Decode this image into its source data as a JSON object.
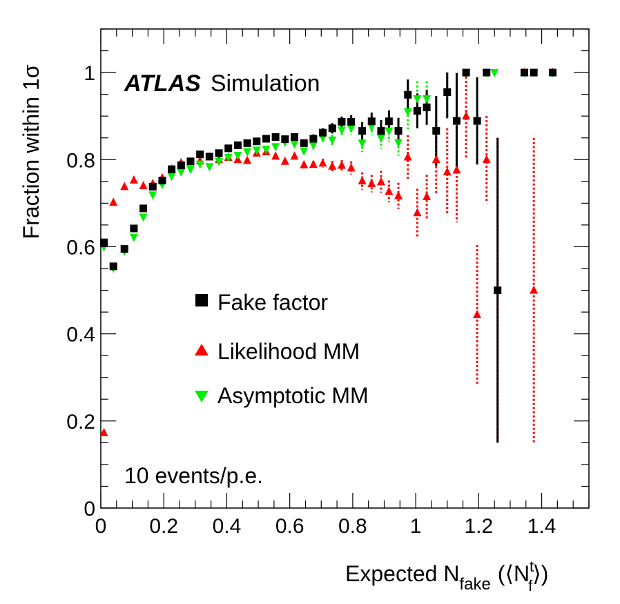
{
  "atlas_label": {
    "experiment": "ATLAS",
    "tag": "Simulation"
  },
  "annotation": "10 events/p.e.",
  "colors": {
    "fake_factor": "#000000",
    "likelihood": "#ff0000",
    "asymptotic": "#00ee00"
  },
  "chart_data": {
    "type": "scatter",
    "title": "",
    "xlabel": {
      "main": "Expected N",
      "sub": "fake",
      "paren_open": "(⟨N",
      "sup": "t",
      "sub2": "f",
      "paren_close": "⟩)"
    },
    "ylabel": "Fraction within 1σ",
    "xlim": [
      0,
      1.55
    ],
    "ylim": [
      0,
      1.1
    ],
    "x_ticks": [
      0,
      0.2,
      0.4,
      0.6,
      0.8,
      1,
      1.2,
      1.4
    ],
    "x_tick_labels": [
      "0",
      "0.2",
      "0.4",
      "0.6",
      "0.8",
      "1",
      "1.2",
      "1.4"
    ],
    "y_ticks": [
      0,
      0.2,
      0.4,
      0.6,
      0.8,
      1
    ],
    "y_tick_labels": [
      "0",
      "0.2",
      "0.4",
      "0.6",
      "0.8",
      "1"
    ],
    "legend": [
      {
        "name": "Fake factor",
        "marker": "square"
      },
      {
        "name": "Likelihood MM",
        "marker": "triangle-up"
      },
      {
        "name": "Asymptotic MM",
        "marker": "triangle-down"
      }
    ],
    "series": [
      {
        "name": "Fake factor",
        "marker": "square",
        "points": [
          [
            0.01,
            0.61,
            0.005
          ],
          [
            0.04,
            0.555,
            0.008
          ],
          [
            0.075,
            0.595,
            0.005
          ],
          [
            0.105,
            0.642,
            0.005
          ],
          [
            0.135,
            0.688,
            0.005
          ],
          [
            0.165,
            0.738,
            0.005
          ],
          [
            0.195,
            0.752,
            0.005
          ],
          [
            0.225,
            0.778,
            0.005
          ],
          [
            0.255,
            0.787,
            0.005
          ],
          [
            0.285,
            0.796,
            0.005
          ],
          [
            0.315,
            0.812,
            0.005
          ],
          [
            0.345,
            0.807,
            0.005
          ],
          [
            0.375,
            0.815,
            0.005
          ],
          [
            0.405,
            0.826,
            0.005
          ],
          [
            0.435,
            0.833,
            0.005
          ],
          [
            0.465,
            0.838,
            0.005
          ],
          [
            0.495,
            0.842,
            0.005
          ],
          [
            0.525,
            0.848,
            0.006
          ],
          [
            0.555,
            0.852,
            0.006
          ],
          [
            0.585,
            0.847,
            0.006
          ],
          [
            0.615,
            0.852,
            0.006
          ],
          [
            0.645,
            0.838,
            0.008
          ],
          [
            0.675,
            0.848,
            0.01
          ],
          [
            0.705,
            0.862,
            0.01
          ],
          [
            0.735,
            0.872,
            0.012
          ],
          [
            0.765,
            0.887,
            0.012
          ],
          [
            0.795,
            0.887,
            0.015
          ],
          [
            0.83,
            0.866,
            0.02
          ],
          [
            0.86,
            0.888,
            0.02
          ],
          [
            0.89,
            0.866,
            0.025
          ],
          [
            0.915,
            0.888,
            0.025
          ],
          [
            0.945,
            0.866,
            0.03
          ],
          [
            0.975,
            0.949,
            0.035
          ],
          [
            1.005,
            0.912,
            0.04
          ],
          [
            1.035,
            0.92,
            0.04
          ],
          [
            1.065,
            0.866,
            0.08
          ],
          [
            1.1,
            0.955,
            0.06
          ],
          [
            1.13,
            0.889,
            0.11
          ],
          [
            1.16,
            1.0,
            0.01
          ],
          [
            1.195,
            0.889,
            0.1
          ],
          [
            1.225,
            1.0,
            0.005
          ],
          [
            1.26,
            0.5,
            0.35
          ],
          [
            1.345,
            1.0,
            0.005
          ],
          [
            1.375,
            1.0,
            0.005
          ],
          [
            1.435,
            1.0,
            0.005
          ]
        ]
      },
      {
        "name": "Likelihood MM",
        "marker": "triangle-up",
        "points": [
          [
            0.01,
            0.173,
            0.0
          ],
          [
            0.04,
            0.702,
            0.0
          ],
          [
            0.075,
            0.738,
            0.0
          ],
          [
            0.105,
            0.753,
            0.0
          ],
          [
            0.135,
            0.74,
            0.0
          ],
          [
            0.165,
            0.745,
            0.0
          ],
          [
            0.195,
            0.758,
            0.0
          ],
          [
            0.225,
            0.778,
            0.0
          ],
          [
            0.255,
            0.793,
            0.0
          ],
          [
            0.285,
            0.795,
            0.0
          ],
          [
            0.315,
            0.797,
            0.0
          ],
          [
            0.345,
            0.806,
            0.0
          ],
          [
            0.375,
            0.8,
            0.0
          ],
          [
            0.405,
            0.805,
            0.0
          ],
          [
            0.435,
            0.8,
            0.0
          ],
          [
            0.465,
            0.798,
            0.0
          ],
          [
            0.495,
            0.815,
            0.0
          ],
          [
            0.525,
            0.818,
            0.0
          ],
          [
            0.555,
            0.808,
            0.0
          ],
          [
            0.585,
            0.796,
            0.006
          ],
          [
            0.615,
            0.808,
            0.006
          ],
          [
            0.645,
            0.788,
            0.008
          ],
          [
            0.675,
            0.789,
            0.008
          ],
          [
            0.705,
            0.792,
            0.01
          ],
          [
            0.735,
            0.785,
            0.012
          ],
          [
            0.765,
            0.787,
            0.012
          ],
          [
            0.795,
            0.781,
            0.015
          ],
          [
            0.83,
            0.751,
            0.02
          ],
          [
            0.86,
            0.745,
            0.02
          ],
          [
            0.89,
            0.749,
            0.025
          ],
          [
            0.915,
            0.727,
            0.025
          ],
          [
            0.945,
            0.717,
            0.03
          ],
          [
            0.975,
            0.806,
            0.05
          ],
          [
            1.005,
            0.678,
            0.055
          ],
          [
            1.035,
            0.715,
            0.05
          ],
          [
            1.065,
            0.8,
            0.08
          ],
          [
            1.1,
            0.772,
            0.1
          ],
          [
            1.13,
            0.776,
            0.12
          ],
          [
            1.16,
            0.9,
            0.1
          ],
          [
            1.195,
            0.444,
            0.16
          ],
          [
            1.225,
            0.8,
            0.1
          ],
          [
            1.26,
            0.5,
            0.35
          ],
          [
            1.345,
            1.0,
            0.005
          ],
          [
            1.375,
            0.5,
            0.35
          ],
          [
            1.435,
            1.0,
            0.005
          ]
        ]
      },
      {
        "name": "Asymptotic MM",
        "marker": "triangle-down",
        "points": [
          [
            0.01,
            0.6,
            0.005
          ],
          [
            0.04,
            0.551,
            0.008
          ],
          [
            0.075,
            0.59,
            0.005
          ],
          [
            0.105,
            0.622,
            0.005
          ],
          [
            0.135,
            0.668,
            0.005
          ],
          [
            0.165,
            0.719,
            0.005
          ],
          [
            0.195,
            0.743,
            0.005
          ],
          [
            0.225,
            0.762,
            0.005
          ],
          [
            0.255,
            0.772,
            0.005
          ],
          [
            0.285,
            0.778,
            0.005
          ],
          [
            0.315,
            0.79,
            0.005
          ],
          [
            0.345,
            0.784,
            0.005
          ],
          [
            0.375,
            0.796,
            0.005
          ],
          [
            0.405,
            0.805,
            0.005
          ],
          [
            0.435,
            0.81,
            0.005
          ],
          [
            0.465,
            0.818,
            0.005
          ],
          [
            0.495,
            0.822,
            0.005
          ],
          [
            0.525,
            0.824,
            0.006
          ],
          [
            0.555,
            0.83,
            0.006
          ],
          [
            0.585,
            0.84,
            0.006
          ],
          [
            0.615,
            0.836,
            0.006
          ],
          [
            0.645,
            0.82,
            0.008
          ],
          [
            0.675,
            0.833,
            0.01
          ],
          [
            0.705,
            0.85,
            0.01
          ],
          [
            0.735,
            0.845,
            0.012
          ],
          [
            0.765,
            0.868,
            0.012
          ],
          [
            0.795,
            0.872,
            0.015
          ],
          [
            0.83,
            0.838,
            0.02
          ],
          [
            0.86,
            0.876,
            0.02
          ],
          [
            0.89,
            0.85,
            0.025
          ],
          [
            0.915,
            0.866,
            0.025
          ],
          [
            0.945,
            0.839,
            0.03
          ],
          [
            0.975,
            0.91,
            0.04
          ],
          [
            1.005,
            0.94,
            0.04
          ],
          [
            1.035,
            0.94,
            0.04
          ],
          [
            1.065,
            0.866,
            0.08
          ],
          [
            1.1,
            0.955,
            0.06
          ],
          [
            1.13,
            0.889,
            0.11
          ],
          [
            1.16,
            1.0,
            0.01
          ],
          [
            1.195,
            0.889,
            0.1
          ],
          [
            1.225,
            1.0,
            0.005
          ],
          [
            1.25,
            1.0,
            0.005
          ],
          [
            1.345,
            1.0,
            0.005
          ],
          [
            1.375,
            1.0,
            0.005
          ],
          [
            1.435,
            1.0,
            0.005
          ]
        ]
      }
    ]
  }
}
